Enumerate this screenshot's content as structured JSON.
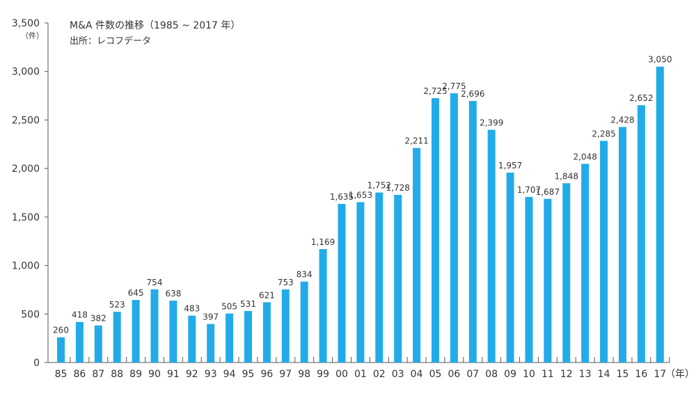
{
  "chart_data": {
    "type": "bar",
    "title": "M&A 件数の推移（1985 ~ 2017 年）",
    "source": "出所：レコフデータ",
    "y_unit": "（件）",
    "x_unit": "（年）",
    "categories": [
      "85",
      "86",
      "87",
      "88",
      "89",
      "90",
      "91",
      "92",
      "93",
      "94",
      "95",
      "96",
      "97",
      "98",
      "99",
      "00",
      "01",
      "02",
      "03",
      "04",
      "05",
      "06",
      "07",
      "08",
      "09",
      "10",
      "11",
      "12",
      "13",
      "14",
      "15",
      "16",
      "17"
    ],
    "values": [
      260,
      418,
      382,
      523,
      645,
      754,
      638,
      483,
      397,
      505,
      531,
      621,
      753,
      834,
      1169,
      1635,
      1653,
      1752,
      1728,
      2211,
      2725,
      2775,
      2696,
      2399,
      1957,
      1707,
      1687,
      1848,
      2048,
      2285,
      2428,
      2652,
      3050
    ],
    "value_labels": [
      "260",
      "418",
      "382",
      "523",
      "645",
      "754",
      "638",
      "483",
      "397",
      "505",
      "531",
      "621",
      "753",
      "834",
      "1,169",
      "1,635",
      "1,653",
      "1,752",
      "1,728",
      "2,211",
      "2,725",
      "2,775",
      "2,696",
      "2,399",
      "1,957",
      "1,707",
      "1,687",
      "1,848",
      "2,048",
      "2,285",
      "2,428",
      "2,652",
      "3,050"
    ],
    "ylim": [
      0,
      3500
    ],
    "yticks": [
      0,
      500,
      1000,
      1500,
      2000,
      2500,
      3000,
      3500
    ],
    "ytick_labels": [
      "0",
      "500",
      "1,000",
      "1,500",
      "2,000",
      "2,500",
      "3,000",
      "3,500"
    ],
    "bar_color": "#22ABE8",
    "grid": false,
    "legend": "none"
  }
}
